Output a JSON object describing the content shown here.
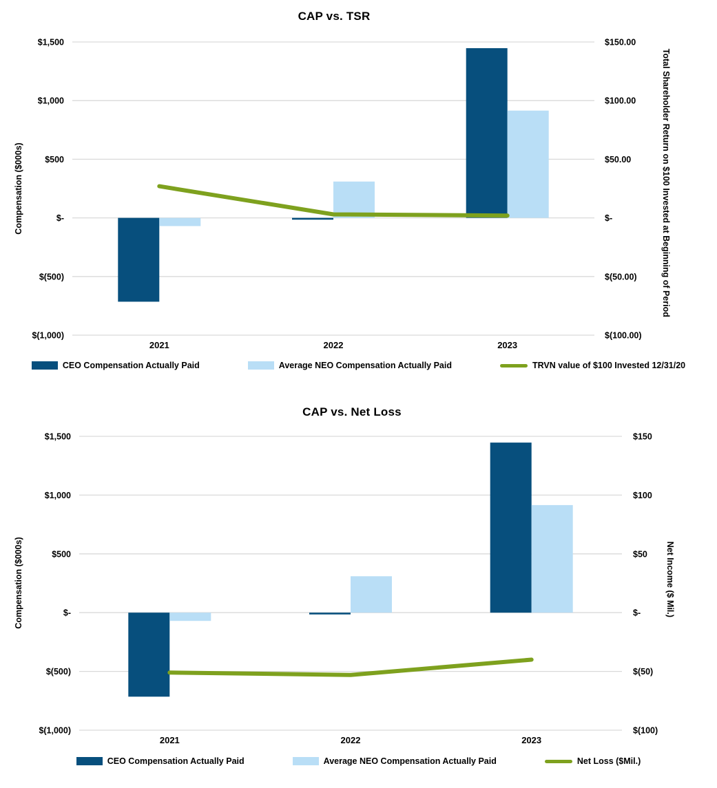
{
  "page_background": "#ffffff",
  "colors": {
    "ceo_bar": "#074F7D",
    "neo_bar": "#B9DEF6",
    "tsr_line": "#7EA11E",
    "net_loss_line": "#7EA11E",
    "gridline": "#D9D9D9",
    "text": "#000000"
  },
  "chart_data": [
    {
      "id": "cap-vs-tsr",
      "type": "bar",
      "subtype": "bar+line-dual-axis",
      "title": "CAP vs. TSR",
      "categories": [
        "2021",
        "2022",
        "2023"
      ],
      "grid": true,
      "legend_position": "bottom",
      "left_axis": {
        "title": "Compensation ($000s)",
        "tick_labels": [
          "$1,500",
          "$1,000",
          "$500",
          "$-",
          "$(500)",
          "$(1,000)"
        ],
        "tick_values": [
          1500,
          1000,
          500,
          0,
          -500,
          -1000
        ],
        "range": [
          -1000,
          1500
        ]
      },
      "right_axis": {
        "title": "Total Shareholder Return on $100 Invested at Beginning of Period",
        "tick_labels": [
          "$150.00",
          "$100.00",
          "$50.00",
          "$-",
          "$(50.00)",
          "$(100.00)"
        ],
        "tick_values": [
          150,
          100,
          50,
          0,
          -50,
          -100
        ],
        "range": [
          -100,
          150
        ]
      },
      "series": [
        {
          "name": "CEO Compensation Actually Paid",
          "type": "bar",
          "axis": "left",
          "color_key": "ceo_bar",
          "values": [
            -715,
            -15,
            1447
          ]
        },
        {
          "name": "Average NEO Compensation Actually Paid",
          "type": "bar",
          "axis": "left",
          "color_key": "neo_bar",
          "values": [
            -70,
            310,
            915
          ]
        },
        {
          "name": "TRVN value of $100 Invested 12/31/20",
          "type": "line",
          "axis": "right",
          "color_key": "tsr_line",
          "values": [
            27,
            3,
            2
          ]
        }
      ]
    },
    {
      "id": "cap-vs-net-loss",
      "type": "bar",
      "subtype": "bar+line-dual-axis",
      "title": "CAP vs. Net Loss",
      "categories": [
        "2021",
        "2022",
        "2023"
      ],
      "grid": true,
      "legend_position": "bottom",
      "left_axis": {
        "title": "Compensation ($000s)",
        "tick_labels": [
          "$1,500",
          "$1,000",
          "$500",
          "$-",
          "$(500)",
          "$(1,000)"
        ],
        "tick_values": [
          1500,
          1000,
          500,
          0,
          -500,
          -1000
        ],
        "range": [
          -1000,
          1500
        ]
      },
      "right_axis": {
        "title": "Net Income ($ Mil.)",
        "tick_labels": [
          "$150",
          "$100",
          "$50",
          "$-",
          "$(50)",
          "$(100)"
        ],
        "tick_values": [
          150,
          100,
          50,
          0,
          -50,
          -100
        ],
        "range": [
          -100,
          150
        ]
      },
      "series": [
        {
          "name": "CEO Compensation Actually Paid",
          "type": "bar",
          "axis": "left",
          "color_key": "ceo_bar",
          "values": [
            -715,
            -15,
            1447
          ]
        },
        {
          "name": "Average NEO Compensation Actually Paid",
          "type": "bar",
          "axis": "left",
          "color_key": "neo_bar",
          "values": [
            -70,
            310,
            915
          ]
        },
        {
          "name": "Net Loss ($Mil.)",
          "type": "line",
          "axis": "right",
          "color_key": "net_loss_line",
          "values": [
            -51,
            -53,
            -40
          ]
        }
      ]
    }
  ]
}
